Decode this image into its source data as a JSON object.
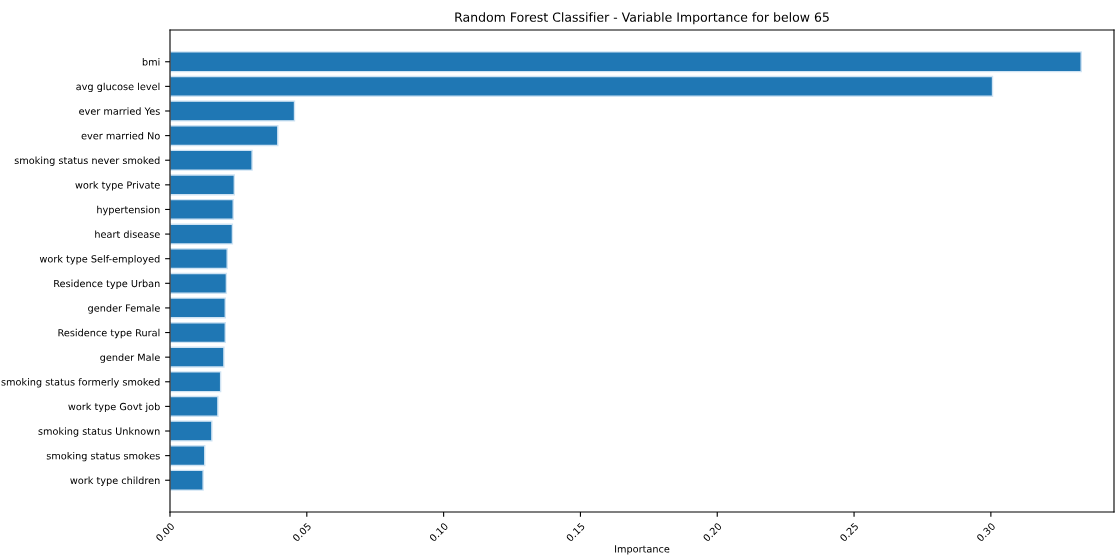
{
  "chart_data": {
    "type": "bar",
    "orientation": "horizontal",
    "title": "Random Forest Classifier - Variable Importance for below 65",
    "xlabel": "Importance",
    "categories": [
      "bmi",
      "avg glucose level",
      "ever married Yes",
      "ever married No",
      "smoking status never smoked",
      "work type Private",
      "hypertension",
      "heart disease",
      "work type Self-employed",
      "Residence type Urban",
      "gender Female",
      "Residence type Rural",
      "gender Male",
      "smoking status formerly smoked",
      "work type Govt job",
      "smoking status Unknown",
      "smoking status smokes",
      "work type children"
    ],
    "values": [
      0.333,
      0.3006,
      0.0455,
      0.0394,
      0.03,
      0.0235,
      0.0231,
      0.0228,
      0.0209,
      0.0206,
      0.0202,
      0.0202,
      0.0197,
      0.0185,
      0.0175,
      0.0153,
      0.0127,
      0.0121
    ],
    "color": "#1f77b4",
    "xlim": [
      0,
      0.345
    ],
    "xticks": [
      {
        "value": 0,
        "label": "0.00"
      },
      {
        "value": 0.05,
        "label": "0.05"
      },
      {
        "value": 0.1,
        "label": "0.10"
      },
      {
        "value": 0.15,
        "label": "0.15"
      },
      {
        "value": 0.2,
        "label": "0.20"
      },
      {
        "value": 0.25,
        "label": "0.25"
      },
      {
        "value": 0.3,
        "label": "0.30"
      }
    ],
    "grid": false,
    "legend": false
  }
}
